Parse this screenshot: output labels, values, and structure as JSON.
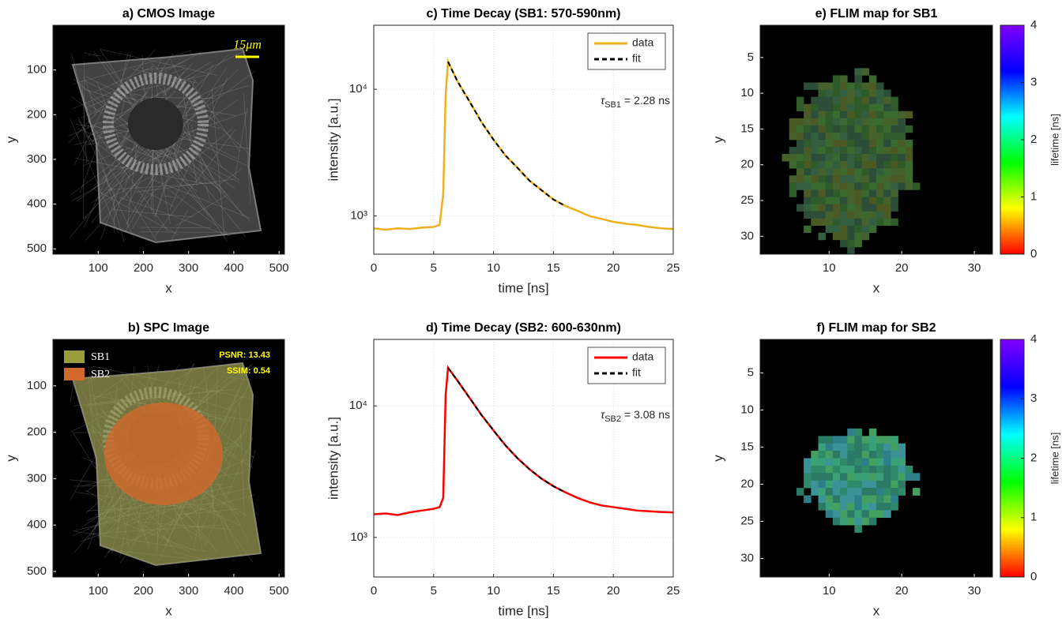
{
  "chart_data": [
    {
      "type": "image",
      "title": "a) CMOS Image",
      "x_label": "x",
      "y_label": "y",
      "xlim": [
        0,
        512
      ],
      "ylim": [
        512,
        0
      ],
      "xticks": [
        100,
        200,
        300,
        400,
        500
      ],
      "yticks": [
        100,
        200,
        300,
        400,
        500
      ],
      "scale_bar_label": "15μm",
      "scale_bar_color": "#ffff00"
    },
    {
      "type": "image",
      "title": "b) SPC Image",
      "x_label": "x",
      "y_label": "y",
      "xlim": [
        0,
        512
      ],
      "ylim": [
        512,
        0
      ],
      "xticks": [
        100,
        200,
        300,
        400,
        500
      ],
      "yticks": [
        100,
        200,
        300,
        400,
        500
      ],
      "series": [
        {
          "name": "SB1",
          "color": "#9a9c3c"
        },
        {
          "name": "SB2",
          "color": "#d2682c"
        }
      ],
      "annotations": [
        "PSNR: 13.43",
        "SSIM: 0.54"
      ],
      "annotation_color": "#ffff00"
    },
    {
      "type": "line",
      "title": "c) Time Decay (SB1: 570-590nm)",
      "x_label": "time [ns]",
      "y_label": "intensity [a.u.]",
      "log_scale": true,
      "grid": true,
      "legend": "upper right",
      "xlim": [
        0,
        25
      ],
      "ylim": [
        500,
        32000
      ],
      "xticks": [
        0,
        5,
        10,
        15,
        20,
        25
      ],
      "yticks": [
        {
          "value": 1000,
          "label": "10³"
        },
        {
          "value": 10000,
          "label": "10⁴"
        }
      ],
      "x": [
        0,
        1,
        2,
        3,
        4,
        5,
        5.5,
        5.8,
        6.0,
        6.2,
        7,
        8,
        9,
        10,
        11,
        12,
        13,
        14,
        15,
        16,
        17,
        18,
        19,
        20,
        21,
        22,
        23,
        24,
        25
      ],
      "series": [
        {
          "name": "data",
          "color": "#edb120",
          "line_style": "solid",
          "values": [
            800,
            780,
            800,
            790,
            810,
            820,
            850,
            1500,
            9000,
            16500,
            11500,
            8000,
            5500,
            4000,
            3000,
            2400,
            1900,
            1600,
            1350,
            1200,
            1100,
            1000,
            950,
            900,
            870,
            850,
            820,
            800,
            790
          ]
        },
        {
          "name": "fit",
          "color": "#000000",
          "line_style": "dashed",
          "values": [
            null,
            null,
            null,
            null,
            null,
            null,
            null,
            null,
            null,
            16500,
            11500,
            8000,
            5500,
            4000,
            3000,
            2400,
            1900,
            1600,
            1350,
            1200,
            null,
            null,
            null,
            null,
            null,
            null,
            null,
            null,
            null
          ]
        }
      ],
      "annotation": {
        "symbol": "τ",
        "subscript": "SB1",
        "text": "= 2.28 ns"
      }
    },
    {
      "type": "line",
      "title": "d) Time Decay (SB2: 600-630nm)",
      "x_label": "time [ns]",
      "y_label": "intensity [a.u.]",
      "log_scale": true,
      "grid": true,
      "legend": "upper right",
      "xlim": [
        0,
        25
      ],
      "ylim": [
        500,
        32000
      ],
      "xticks": [
        0,
        5,
        10,
        15,
        20,
        25
      ],
      "yticks": [
        {
          "value": 1000,
          "label": "10³"
        },
        {
          "value": 10000,
          "label": "10⁴"
        }
      ],
      "x": [
        0,
        1,
        2,
        3,
        4,
        5,
        5.5,
        5.8,
        6.0,
        6.2,
        7,
        8,
        9,
        10,
        11,
        12,
        13,
        14,
        15,
        16,
        17,
        18,
        19,
        20,
        21,
        22,
        23,
        24,
        25
      ],
      "series": [
        {
          "name": "data",
          "color": "#ff0000",
          "line_style": "solid",
          "values": [
            1500,
            1520,
            1480,
            1550,
            1600,
            1650,
            1700,
            2000,
            12000,
            19500,
            15500,
            11500,
            8500,
            6500,
            5000,
            4000,
            3300,
            2800,
            2450,
            2200,
            2000,
            1850,
            1750,
            1700,
            1650,
            1600,
            1580,
            1560,
            1550
          ]
        },
        {
          "name": "fit",
          "color": "#000000",
          "line_style": "dashed",
          "values": [
            null,
            null,
            null,
            null,
            null,
            null,
            null,
            null,
            null,
            19500,
            15500,
            11500,
            8500,
            6500,
            5000,
            4000,
            3300,
            2800,
            2450,
            2200,
            null,
            null,
            null,
            null,
            null,
            null,
            null,
            null,
            null
          ]
        }
      ],
      "annotation": {
        "symbol": "τ",
        "subscript": "SB2",
        "text": "= 3.08 ns"
      }
    },
    {
      "type": "heatmap",
      "title": "e) FLIM map for SB1",
      "x_label": "x",
      "y_label": "y",
      "xlim": [
        0.5,
        32.5
      ],
      "ylim": [
        32.5,
        0.5
      ],
      "xticks": [
        10,
        20,
        30
      ],
      "yticks": [
        5,
        10,
        15,
        20,
        25,
        30
      ],
      "colorbar": {
        "label": "lifetime [ns]",
        "lim": [
          0,
          4
        ],
        "ticks": [
          0,
          1,
          2,
          3,
          4
        ],
        "colormap": [
          "#ff0000",
          "#ffff00",
          "#00ff00",
          "#00ffff",
          "#0000ff",
          "#8000ff"
        ]
      }
    },
    {
      "type": "heatmap",
      "title": "f) FLIM map for SB2",
      "x_label": "x",
      "y_label": "y",
      "xlim": [
        0.5,
        32.5
      ],
      "ylim": [
        32.5,
        0.5
      ],
      "xticks": [
        10,
        20,
        30
      ],
      "yticks": [
        5,
        10,
        15,
        20,
        25,
        30
      ],
      "colorbar": {
        "label": "lifetime [ns]",
        "lim": [
          0,
          4
        ],
        "ticks": [
          0,
          1,
          2,
          3,
          4
        ],
        "colormap": [
          "#ff0000",
          "#ffff00",
          "#00ff00",
          "#00ffff",
          "#0000ff",
          "#8000ff"
        ]
      }
    }
  ]
}
